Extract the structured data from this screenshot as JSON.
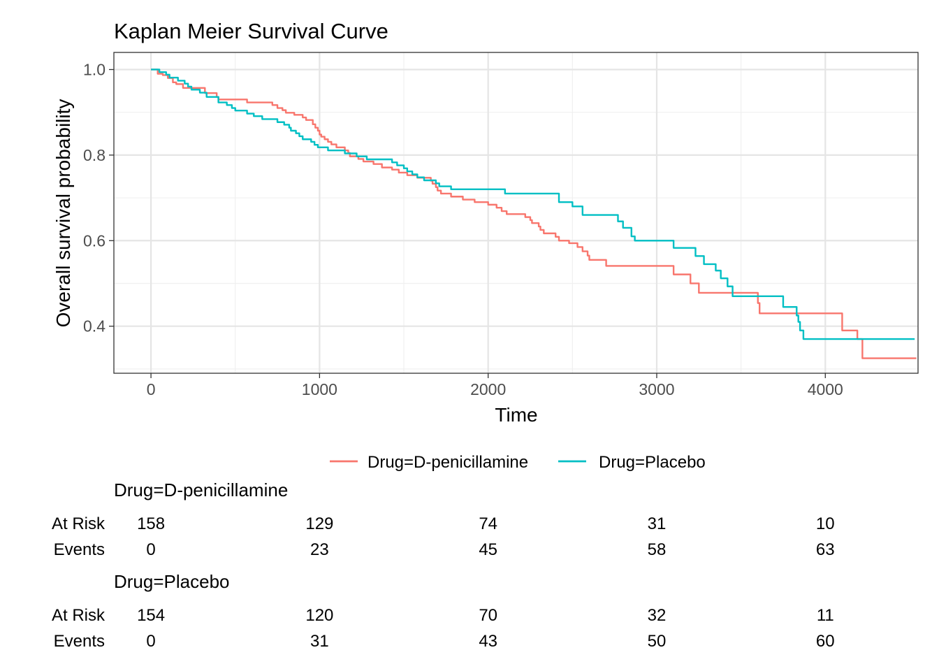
{
  "chart_data": {
    "type": "line",
    "subtype": "step",
    "title": "Kaplan Meier Survival Curve",
    "xlabel": "Time",
    "ylabel": "Overall survival probability",
    "xlim": [
      -220,
      4550
    ],
    "ylim": [
      0.29,
      1.04
    ],
    "xticks": [
      0,
      1000,
      2000,
      3000,
      4000
    ],
    "xtick_labels": [
      "0",
      "1000",
      "2000",
      "3000",
      "4000"
    ],
    "yticks": [
      0.4,
      0.6,
      0.8,
      1.0
    ],
    "ytick_labels": [
      "0.4",
      "0.6",
      "0.8",
      "1.0"
    ],
    "grid": true,
    "legend_position": "bottom",
    "colors": {
      "D-penicillamine": "#F8766D",
      "Placebo": "#00BFC4"
    },
    "series": [
      {
        "name": "Drug=D-penicillamine",
        "color": "#F8766D",
        "x": [
          0,
          40,
          70,
          100,
          130,
          150,
          190,
          230,
          320,
          390,
          400,
          570,
          700,
          720,
          750,
          780,
          800,
          850,
          900,
          920,
          960,
          975,
          990,
          1000,
          1010,
          1030,
          1050,
          1070,
          1100,
          1150,
          1170,
          1180,
          1230,
          1260,
          1320,
          1370,
          1430,
          1470,
          1500,
          1520,
          1580,
          1600,
          1660,
          1670,
          1690,
          1700,
          1720,
          1780,
          1850,
          1920,
          2000,
          2050,
          2080,
          2110,
          2220,
          2250,
          2260,
          2300,
          2310,
          2330,
          2400,
          2420,
          2480,
          2530,
          2560,
          2590,
          2600,
          2700,
          3070,
          3100,
          3200,
          3250,
          3310,
          3600,
          3610,
          3840,
          4100,
          4190,
          4220,
          4540
        ],
        "y": [
          1.0,
          0.99,
          0.987,
          0.98,
          0.97,
          0.966,
          0.957,
          0.957,
          0.945,
          0.936,
          0.93,
          0.923,
          0.923,
          0.917,
          0.91,
          0.905,
          0.899,
          0.894,
          0.888,
          0.882,
          0.872,
          0.864,
          0.857,
          0.848,
          0.843,
          0.837,
          0.831,
          0.825,
          0.818,
          0.811,
          0.805,
          0.797,
          0.791,
          0.785,
          0.779,
          0.771,
          0.766,
          0.759,
          0.759,
          0.753,
          0.747,
          0.747,
          0.74,
          0.733,
          0.725,
          0.717,
          0.71,
          0.703,
          0.696,
          0.69,
          0.684,
          0.677,
          0.669,
          0.662,
          0.655,
          0.648,
          0.641,
          0.633,
          0.625,
          0.617,
          0.609,
          0.6,
          0.594,
          0.585,
          0.575,
          0.565,
          0.555,
          0.541,
          0.541,
          0.521,
          0.5,
          0.478,
          0.478,
          0.454,
          0.43,
          0.43,
          0.39,
          0.37,
          0.325,
          0.325
        ]
      },
      {
        "name": "Drug=Placebo",
        "color": "#00BFC4",
        "x": [
          0,
          50,
          90,
          110,
          160,
          200,
          220,
          240,
          290,
          330,
          400,
          450,
          480,
          500,
          570,
          610,
          660,
          750,
          790,
          820,
          830,
          860,
          880,
          900,
          950,
          970,
          990,
          1050,
          1150,
          1220,
          1280,
          1430,
          1460,
          1500,
          1520,
          1550,
          1580,
          1620,
          1690,
          1710,
          1780,
          2100,
          2420,
          2500,
          2560,
          2770,
          2800,
          2850,
          2870,
          3100,
          3230,
          3280,
          3350,
          3380,
          3420,
          3450,
          3750,
          3830,
          3840,
          3850,
          3870,
          4530
        ],
        "y": [
          1.0,
          0.994,
          0.988,
          0.981,
          0.974,
          0.967,
          0.96,
          0.953,
          0.946,
          0.936,
          0.923,
          0.917,
          0.91,
          0.904,
          0.897,
          0.891,
          0.884,
          0.877,
          0.871,
          0.864,
          0.857,
          0.851,
          0.844,
          0.837,
          0.831,
          0.824,
          0.818,
          0.811,
          0.804,
          0.797,
          0.79,
          0.783,
          0.776,
          0.769,
          0.762,
          0.755,
          0.748,
          0.741,
          0.734,
          0.727,
          0.72,
          0.71,
          0.69,
          0.68,
          0.66,
          0.645,
          0.63,
          0.61,
          0.6,
          0.583,
          0.564,
          0.545,
          0.53,
          0.512,
          0.493,
          0.47,
          0.445,
          0.425,
          0.41,
          0.39,
          0.37,
          0.37
        ]
      }
    ],
    "risk_table": {
      "time_points": [
        0,
        1000,
        2000,
        3000,
        4000
      ],
      "row_labels": [
        "At Risk",
        "Events"
      ],
      "groups": [
        {
          "name": "Drug=D-penicillamine",
          "at_risk": [
            "158",
            "129",
            "74",
            "31",
            "10"
          ],
          "events": [
            "0",
            "23",
            "45",
            "58",
            "63"
          ]
        },
        {
          "name": "Drug=Placebo",
          "at_risk": [
            "154",
            "120",
            "70",
            "32",
            "11"
          ],
          "events": [
            "0",
            "31",
            "43",
            "50",
            "60"
          ]
        }
      ]
    }
  }
}
